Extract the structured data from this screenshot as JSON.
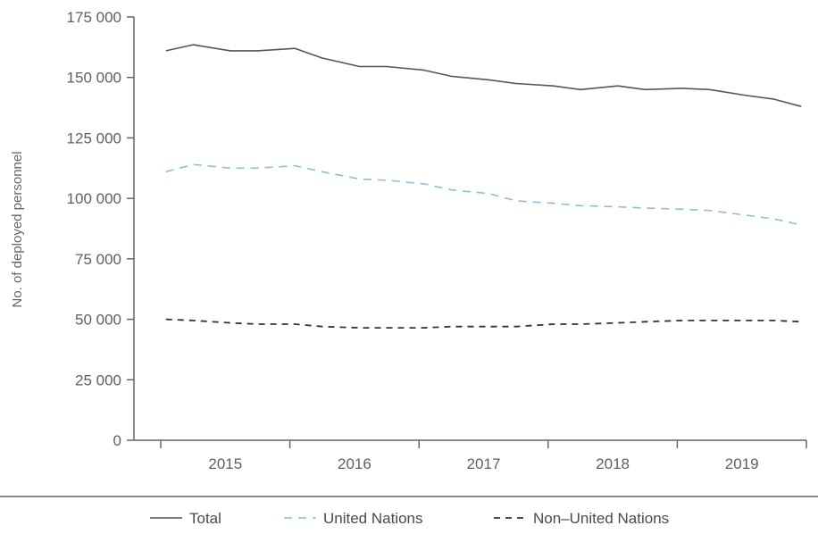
{
  "chart_data": {
    "type": "line",
    "title": "",
    "xlabel": "",
    "ylabel": "No. of deployed personnel",
    "ylim": [
      0,
      175000
    ],
    "yticks": [
      0,
      25000,
      50000,
      75000,
      100000,
      125000,
      150000,
      175000
    ],
    "ytick_labels": [
      "0",
      "25 000",
      "50 000",
      "75 000",
      "100 000",
      "125 000",
      "150 000",
      "175 000"
    ],
    "xlim": [
      2015.0,
      2020.0
    ],
    "categories": [
      "2015",
      "2016",
      "2017",
      "2018",
      "2019"
    ],
    "grid": false,
    "legend_position": "bottom",
    "x": [
      2015.04,
      2015.25,
      2015.54,
      2015.75,
      2016.04,
      2016.25,
      2016.54,
      2016.75,
      2017.04,
      2017.25,
      2017.54,
      2017.75,
      2018.04,
      2018.25,
      2018.54,
      2018.75,
      2019.04,
      2019.25,
      2019.54,
      2019.75,
      2019.96
    ],
    "series": [
      {
        "name": "Total",
        "color": "#555555",
        "dash": "solid",
        "values": [
          161000,
          163500,
          161000,
          161000,
          162000,
          158000,
          154500,
          154500,
          153000,
          150500,
          149000,
          147500,
          146500,
          145000,
          146500,
          145000,
          145500,
          145000,
          142500,
          141000,
          138000
        ]
      },
      {
        "name": "United Nations",
        "color": "#8fbcd6",
        "dash": "dashed",
        "values": [
          111000,
          114000,
          112500,
          112500,
          113500,
          111000,
          108000,
          107500,
          106000,
          103500,
          102000,
          99000,
          98000,
          97000,
          96500,
          96000,
          95500,
          95000,
          93000,
          91500,
          89000
        ]
      },
      {
        "name": "Non–United Nations",
        "color": "#333333",
        "dash": "dashed",
        "values": [
          50000,
          49500,
          48500,
          48000,
          48000,
          47000,
          46500,
          46500,
          46500,
          47000,
          47000,
          47000,
          48000,
          48000,
          48500,
          49000,
          49500,
          49500,
          49500,
          49500,
          49000
        ]
      }
    ]
  }
}
